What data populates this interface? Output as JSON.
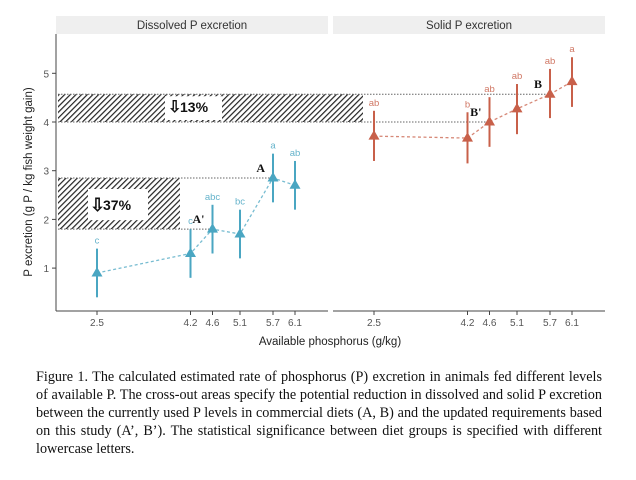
{
  "chart_data": [
    {
      "type": "line",
      "title": "Dissolved P excretion",
      "xlabel": "Available phosphorus (g/kg)",
      "ylabel": "P excretion (g P / kg fish weight gain)",
      "x": [
        2.5,
        4.2,
        4.6,
        5.1,
        5.7,
        6.1
      ],
      "x_tick_labels": [
        "2.5",
        "4.2",
        "4.6",
        "5.1",
        "5.7",
        "6.1"
      ],
      "y": [
        0.9,
        1.3,
        1.8,
        1.7,
        2.85,
        2.7
      ],
      "y_lower": [
        0.4,
        0.8,
        1.3,
        1.2,
        2.35,
        2.2
      ],
      "y_upper": [
        1.4,
        1.8,
        2.3,
        2.2,
        3.35,
        3.2
      ],
      "significance_letters": [
        "c",
        "c",
        "abc",
        "bc",
        "a",
        "ab"
      ],
      "y_ticks": [
        1,
        2,
        3,
        4,
        5
      ],
      "ylim": [
        0.2,
        5.8
      ],
      "color": "#4aa6c2",
      "marker": "triangle",
      "annotations": [
        {
          "label": "A",
          "x": 5.7,
          "y": 2.85
        },
        {
          "label": "A'",
          "x": 4.6,
          "y": 1.8
        }
      ],
      "reduction": {
        "label": "37%",
        "from": 2.85,
        "to": 1.8,
        "icon": "down-arrow-outline-icon"
      }
    },
    {
      "type": "line",
      "title": "Solid P excretion",
      "x": [
        2.5,
        4.2,
        4.6,
        5.1,
        5.7,
        6.1
      ],
      "x_tick_labels": [
        "2.5",
        "4.2",
        "4.6",
        "5.1",
        "5.7",
        "6.1"
      ],
      "y": [
        3.71,
        3.67,
        4.0,
        4.27,
        4.57,
        4.83
      ],
      "y_lower": [
        3.2,
        3.15,
        3.49,
        3.75,
        4.08,
        4.31
      ],
      "y_upper": [
        4.23,
        4.2,
        4.51,
        4.78,
        5.09,
        5.33
      ],
      "significance_letters": [
        "ab",
        "b",
        "ab",
        "ab",
        "ab",
        "a"
      ],
      "color": "#c8604a",
      "marker": "triangle",
      "annotations": [
        {
          "label": "B",
          "x": 5.7,
          "y": 4.57
        },
        {
          "label": "B'",
          "x": 4.6,
          "y": 4.0
        }
      ],
      "reduction": {
        "label": "13%",
        "from": 4.57,
        "to": 4.0,
        "icon": "down-arrow-outline-icon"
      }
    }
  ],
  "caption": "Figure 1. The calculated estimated rate of phosphorus (P) excretion in animals fed different levels of available P. The cross-out areas specify the potential reduction in dissolved and solid P excretion between the currently used P levels in commercial diets (A, B) and the updated requirements based on this study (A’, B’). The statistical significance between diet groups is specified with different lowercase letters."
}
